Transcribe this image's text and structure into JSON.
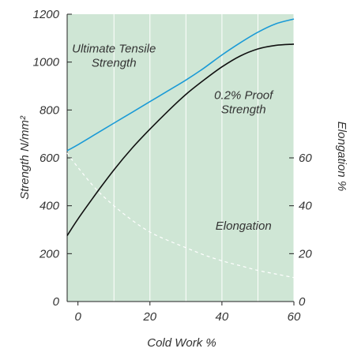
{
  "chart_data": {
    "type": "line",
    "xlabel": "Cold Work %",
    "ylabel": "Strength N/mm²",
    "y2label": "Elongation %",
    "xlim": [
      -3,
      60
    ],
    "ylim": [
      0,
      1200
    ],
    "y2lim": [
      0,
      120
    ],
    "x_ticks": [
      "0",
      "20",
      "40",
      "60"
    ],
    "x_tick_values": [
      0,
      20,
      40,
      60
    ],
    "y_ticks": [
      "0",
      "200",
      "400",
      "600",
      "800",
      "1000",
      "1200"
    ],
    "y_tick_values": [
      0,
      200,
      400,
      600,
      800,
      1000,
      1200
    ],
    "y2_ticks": [
      "0",
      "20",
      "40",
      "60"
    ],
    "y2_tick_values": [
      0,
      20,
      40,
      60
    ],
    "grid": true,
    "background_color": "#cfe6d5",
    "grid_color": "#ffffff",
    "series": [
      {
        "name": "Ultimate Tensile Strength",
        "axis": "left",
        "style": "solid",
        "color": "#1a9ad6",
        "x": [
          -3,
          0,
          5,
          10,
          15,
          20,
          25,
          30,
          35,
          40,
          45,
          50,
          55,
          60
        ],
        "y": [
          630,
          655,
          700,
          745,
          790,
          835,
          880,
          925,
          975,
          1030,
          1080,
          1125,
          1160,
          1180
        ]
      },
      {
        "name": "0.2% Proof Strength",
        "axis": "left",
        "style": "solid",
        "color": "#111111",
        "x": [
          -3,
          0,
          5,
          10,
          15,
          20,
          25,
          30,
          35,
          40,
          45,
          50,
          55,
          60
        ],
        "y": [
          275,
          345,
          450,
          550,
          640,
          720,
          795,
          865,
          925,
          980,
          1025,
          1055,
          1070,
          1075
        ]
      },
      {
        "name": "Elongation",
        "axis": "right",
        "style": "dashed",
        "color": "#ffffff",
        "x": [
          -3,
          0,
          5,
          10,
          15,
          20,
          25,
          30,
          35,
          40,
          45,
          50,
          55,
          60
        ],
        "y": [
          62,
          56,
          47,
          40,
          34,
          29,
          25.5,
          22.5,
          19.5,
          17,
          15,
          13,
          11.5,
          10
        ]
      }
    ],
    "annotations": [
      {
        "series": "Ultimate Tensile Strength",
        "lines": [
          "Ultimate Tensile",
          "Strength"
        ],
        "x": 10,
        "y": 1040
      },
      {
        "series": "0.2% Proof Strength",
        "lines": [
          "0.2% Proof",
          "Strength"
        ],
        "x": 46,
        "y": 845
      },
      {
        "series": "Elongation",
        "lines": [
          "Elongation"
        ],
        "x": 46,
        "y": 30,
        "axis": "right"
      }
    ]
  }
}
